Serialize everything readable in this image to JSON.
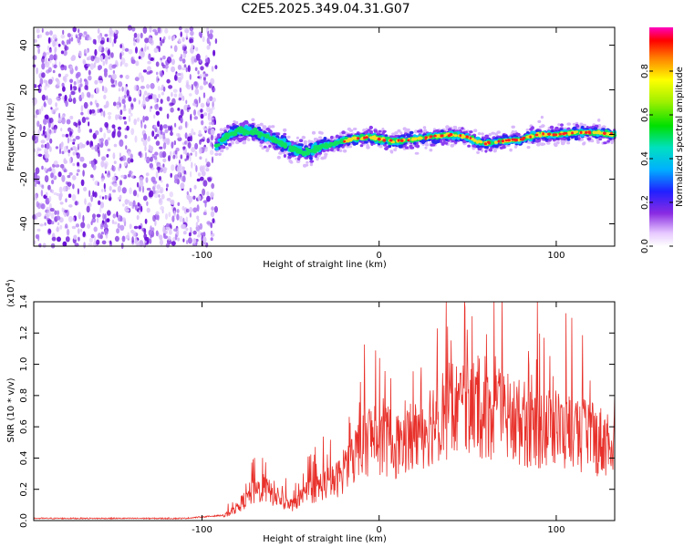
{
  "title": "C2E5.2025.349.04.31.G07",
  "colors": {
    "snr_line": "#e8302a",
    "scatter_purple": "#7b1fe0",
    "axis": "#000000"
  },
  "chart_data": [
    {
      "type": "heatmap",
      "name": "spectrogram",
      "xlabel": "Height of straight line (km)",
      "ylabel": "Frequency (Hz)",
      "xlim": [
        -195,
        133
      ],
      "ylim": [
        -50,
        48
      ],
      "x_ticks": [
        -100,
        0,
        100
      ],
      "x_tick_labels": [
        "-100",
        "0",
        "100"
      ],
      "y_ticks": [
        -40,
        -20,
        0,
        20,
        40
      ],
      "y_tick_labels": [
        "-40",
        "-20",
        "0",
        "20",
        "40"
      ],
      "noise_region_x": [
        -195,
        -92
      ],
      "ridge": {
        "x": [
          -92,
          -85,
          -78,
          -70,
          -60,
          -50,
          -42,
          -35,
          -25,
          -15,
          -5,
          0,
          10,
          20,
          30,
          40,
          50,
          55,
          60,
          70,
          80,
          90,
          100,
          110,
          120,
          133
        ],
        "y": [
          -5,
          0,
          2,
          1,
          -2,
          -6,
          -8,
          -6,
          -4,
          -2,
          -1,
          -2,
          -3,
          -2,
          -1,
          0,
          -1,
          -3,
          -4,
          -3,
          -2,
          0,
          0,
          1,
          1,
          0
        ]
      },
      "colorbar": {
        "label": "Normalized spectral amplitude",
        "range": [
          0.0,
          1.0
        ],
        "ticks": [
          0.0,
          0.2,
          0.4,
          0.6,
          0.8
        ],
        "tick_labels": [
          "0.0",
          "0.2",
          "0.4",
          "0.6",
          "0.8"
        ]
      }
    },
    {
      "type": "line",
      "name": "snr",
      "xlabel": "Height of straight line (km)",
      "ylabel": "SNR (10 * v/v)",
      "y_scale_label": "(x10",
      "y_scale_exp": "4",
      "xlim": [
        -195,
        133
      ],
      "ylim": [
        0.0,
        1.4
      ],
      "x_ticks": [
        -100,
        0,
        100
      ],
      "x_tick_labels": [
        "-100",
        "0",
        "100"
      ],
      "y_ticks": [
        0.0,
        0.2,
        0.4,
        0.6,
        0.8,
        1.0,
        1.2,
        1.4
      ],
      "y_tick_labels": [
        "0.0",
        "0.2",
        "0.4",
        "0.6",
        "0.8",
        "1.0",
        "1.2",
        "1.4"
      ],
      "envelope": {
        "x": [
          -195,
          -110,
          -88,
          -80,
          -72,
          -65,
          -58,
          -50,
          -40,
          -32,
          -25,
          -18,
          -12,
          -5,
          0,
          10,
          20,
          30,
          40,
          50,
          60,
          70,
          80,
          90,
          100,
          110,
          120,
          133
        ],
        "y": [
          0.01,
          0.01,
          0.03,
          0.1,
          0.22,
          0.25,
          0.18,
          0.12,
          0.22,
          0.28,
          0.3,
          0.42,
          0.55,
          0.65,
          0.62,
          0.58,
          0.65,
          0.78,
          0.85,
          0.88,
          0.86,
          0.8,
          0.76,
          0.72,
          0.7,
          0.68,
          0.63,
          0.6
        ]
      }
    }
  ]
}
